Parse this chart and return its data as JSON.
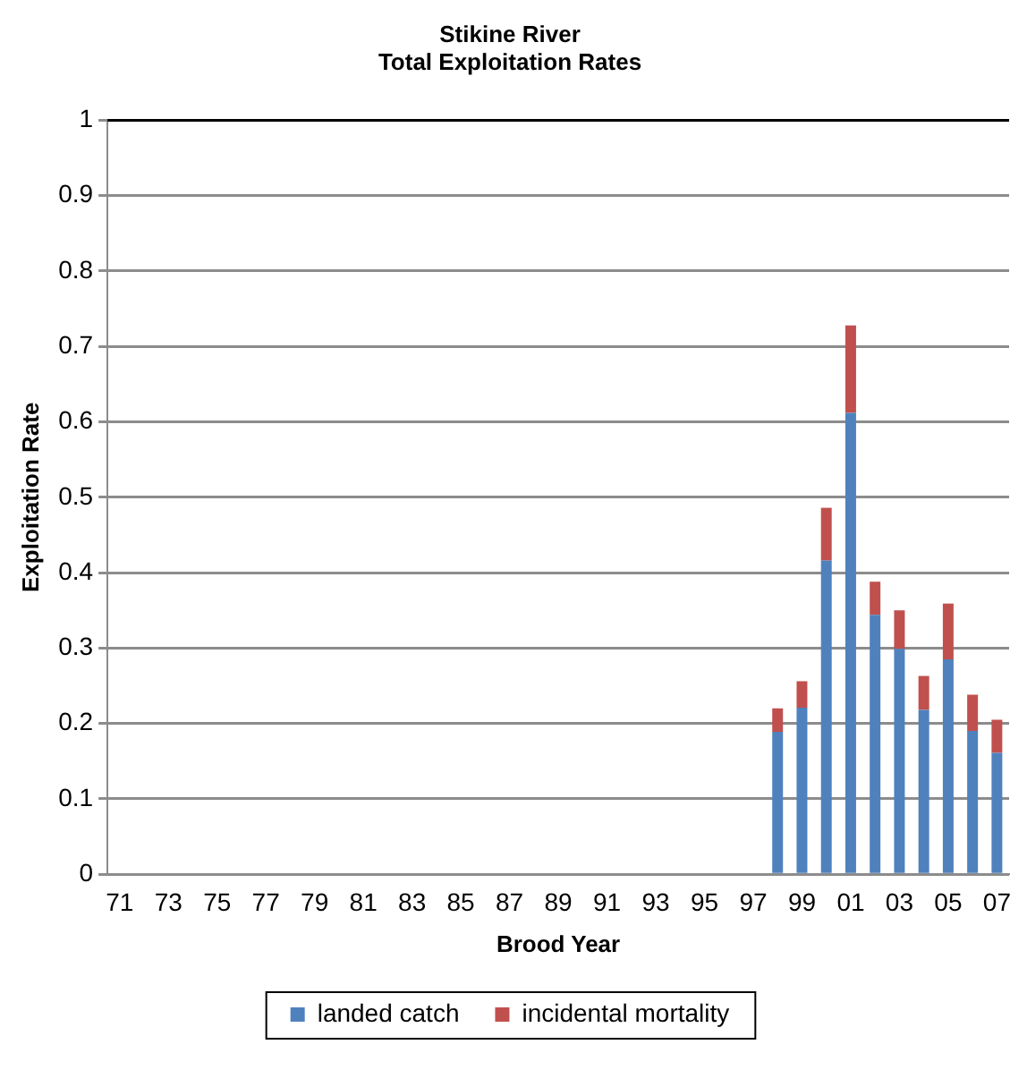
{
  "chart_data": {
    "type": "bar",
    "title": [
      "Stikine River",
      "Total Exploitation Rates"
    ],
    "xlabel": "Brood Year",
    "ylabel": "Exploitation Rate",
    "categories": [
      "71",
      null,
      "73",
      null,
      "75",
      null,
      "77",
      null,
      "79",
      null,
      "81",
      null,
      "83",
      null,
      "85",
      null,
      "87",
      null,
      "89",
      null,
      "91",
      null,
      "93",
      null,
      "95",
      null,
      "97",
      null,
      "99",
      null,
      "01",
      null,
      "03",
      null,
      "05",
      null,
      "07"
    ],
    "stacked": true,
    "ylim": [
      0,
      1
    ],
    "yticks": [
      0,
      0.1,
      0.2,
      0.3,
      0.4,
      0.5,
      0.6,
      0.7,
      0.8,
      0.9,
      1
    ],
    "grid": "y",
    "legend": "bottom",
    "series": [
      {
        "name": "landed catch",
        "color": "#4f81bd",
        "values": [
          null,
          null,
          null,
          null,
          null,
          null,
          null,
          null,
          null,
          null,
          null,
          null,
          null,
          null,
          null,
          null,
          null,
          null,
          null,
          null,
          null,
          null,
          null,
          null,
          null,
          null,
          null,
          0.189,
          0.221,
          0.416,
          0.612,
          0.344,
          0.299,
          0.218,
          0.285,
          0.19,
          0.161
        ]
      },
      {
        "name": "incidental mortality",
        "color": "#c0504d",
        "values": [
          null,
          null,
          null,
          null,
          null,
          null,
          null,
          null,
          null,
          null,
          null,
          null,
          null,
          null,
          null,
          null,
          null,
          null,
          null,
          null,
          null,
          null,
          null,
          null,
          null,
          null,
          null,
          0.031,
          0.035,
          0.07,
          0.116,
          0.044,
          0.051,
          0.045,
          0.074,
          0.048,
          0.044
        ]
      }
    ]
  }
}
